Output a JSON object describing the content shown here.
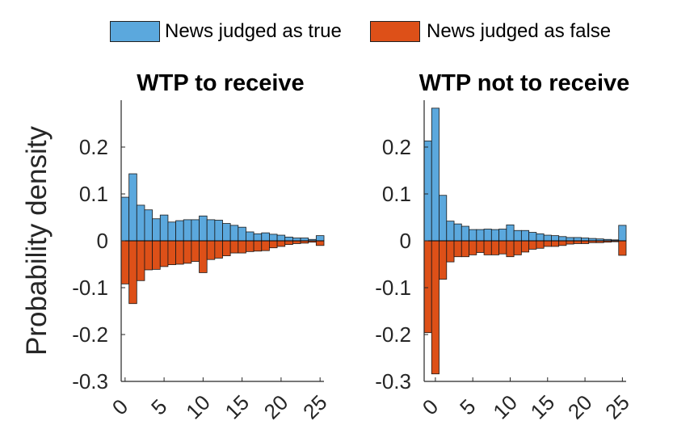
{
  "legend": {
    "true_label": "News judged as true",
    "false_label": "News judged as false"
  },
  "colors": {
    "true_color": "#5ba8dd",
    "false_color": "#dd5018",
    "outline": "#1a1a1a"
  },
  "ylabel": "Probability density",
  "chart_data": [
    {
      "type": "bar",
      "title": "WTP to receive",
      "ylabel": "Probability density",
      "ylim": [
        -0.3,
        0.3
      ],
      "yticks": [
        -0.3,
        -0.2,
        -0.1,
        0,
        0.1,
        0.2
      ],
      "ytick_labels": [
        "-0.3",
        "-0.2",
        "-0.1",
        "0",
        "0.1",
        "0.2"
      ],
      "xticks": [
        0,
        5,
        10,
        15,
        20,
        25
      ],
      "xtick_labels": [
        "0",
        "5",
        "10",
        "15",
        "20",
        "25"
      ],
      "xlim": [
        -0.5,
        25.5
      ],
      "x": [
        0,
        1,
        2,
        3,
        4,
        5,
        6,
        7,
        8,
        9,
        10,
        11,
        12,
        13,
        14,
        15,
        16,
        17,
        18,
        19,
        20,
        21,
        22,
        23,
        24,
        25
      ],
      "series": [
        {
          "name": "News judged as true",
          "values": [
            0.093,
            0.143,
            0.076,
            0.066,
            0.047,
            0.055,
            0.04,
            0.043,
            0.045,
            0.045,
            0.053,
            0.045,
            0.044,
            0.037,
            0.033,
            0.029,
            0.019,
            0.015,
            0.017,
            0.014,
            0.012,
            0.008,
            0.006,
            0.006,
            0.003,
            0.011
          ]
        },
        {
          "name": "News judged as false",
          "values": [
            -0.092,
            -0.134,
            -0.085,
            -0.062,
            -0.061,
            -0.055,
            -0.051,
            -0.05,
            -0.048,
            -0.044,
            -0.068,
            -0.04,
            -0.037,
            -0.032,
            -0.026,
            -0.026,
            -0.023,
            -0.022,
            -0.021,
            -0.015,
            -0.012,
            -0.008,
            -0.006,
            -0.005,
            -0.003,
            -0.01
          ]
        }
      ]
    },
    {
      "type": "bar",
      "title": "WTP not to receive",
      "ylabel": "",
      "ylim": [
        -0.3,
        0.3
      ],
      "yticks": [
        -0.3,
        -0.2,
        -0.1,
        0,
        0.1,
        0.2
      ],
      "ytick_labels": [
        "-0.3",
        "-0.2",
        "-0.1",
        "0",
        "0.1",
        "0.2"
      ],
      "xticks": [
        0,
        5,
        10,
        15,
        20,
        25
      ],
      "xtick_labels": [
        "0",
        "5",
        "10",
        "15",
        "20",
        "25"
      ],
      "xlim": [
        -1.5,
        25.5
      ],
      "x": [
        -1,
        0,
        1,
        2,
        3,
        4,
        5,
        6,
        7,
        8,
        9,
        10,
        11,
        12,
        13,
        14,
        15,
        16,
        17,
        18,
        19,
        20,
        21,
        22,
        23,
        24,
        25
      ],
      "series": [
        {
          "name": "News judged as true",
          "values": [
            0.213,
            0.283,
            0.097,
            0.042,
            0.036,
            0.031,
            0.024,
            0.024,
            0.025,
            0.024,
            0.025,
            0.034,
            0.022,
            0.022,
            0.018,
            0.015,
            0.012,
            0.011,
            0.009,
            0.007,
            0.007,
            0.006,
            0.005,
            0.004,
            0.003,
            0.002,
            0.033
          ]
        },
        {
          "name": "News judged as false",
          "values": [
            -0.196,
            -0.284,
            -0.082,
            -0.045,
            -0.034,
            -0.034,
            -0.03,
            -0.025,
            -0.03,
            -0.03,
            -0.028,
            -0.034,
            -0.03,
            -0.024,
            -0.018,
            -0.016,
            -0.012,
            -0.012,
            -0.01,
            -0.007,
            -0.006,
            -0.006,
            -0.004,
            -0.004,
            -0.003,
            -0.002,
            -0.031
          ]
        }
      ]
    }
  ]
}
